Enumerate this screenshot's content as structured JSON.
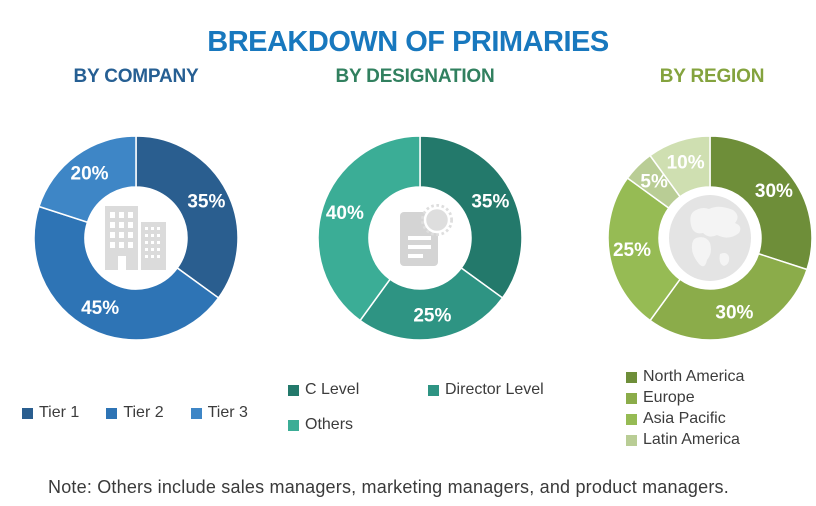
{
  "title": "BREAKDOWN OF PRIMARIES",
  "title_color": "#1878BE",
  "note": "Note: Others include sales managers, marketing managers, and product managers.",
  "chart_data": [
    {
      "type": "pie",
      "variant": "donut",
      "title": "BY COMPANY",
      "title_color": "#265F93",
      "center_icon": "building-icon",
      "legend_layout": "row",
      "segments": [
        {
          "label": "Tier 1",
          "value": 35,
          "display": "35%",
          "color": "#2A5E8F"
        },
        {
          "label": "Tier 2",
          "value": 45,
          "display": "45%",
          "color": "#2E74B5"
        },
        {
          "label": "Tier 3",
          "value": 20,
          "display": "20%",
          "color": "#3E86C6"
        }
      ],
      "legend": [
        {
          "label": "Tier 1",
          "color": "#2A5E8F"
        },
        {
          "label": "Tier 2",
          "color": "#2E74B5"
        },
        {
          "label": "Tier 3",
          "color": "#3E86C6"
        }
      ]
    },
    {
      "type": "pie",
      "variant": "donut",
      "title": "BY DESIGNATION",
      "title_color": "#31805F",
      "center_icon": "document-icon",
      "legend_layout": "grid",
      "segments": [
        {
          "label": "C Level",
          "value": 35,
          "display": "35%",
          "color": "#23796B"
        },
        {
          "label": "Director Level",
          "value": 25,
          "display": "25%",
          "color": "#2E9483"
        },
        {
          "label": "Others",
          "value": 40,
          "display": "40%",
          "color": "#3BAD96"
        }
      ],
      "legend": [
        {
          "label": "C Level",
          "color": "#23796B"
        },
        {
          "label": "Director Level",
          "color": "#2E9483"
        },
        {
          "label": "Others",
          "color": "#3BAD96"
        }
      ]
    },
    {
      "type": "pie",
      "variant": "donut",
      "title": "BY REGION",
      "title_color": "#84A33E",
      "center_icon": "globe-icon",
      "legend_layout": "column",
      "segments": [
        {
          "label": "North America",
          "value": 30,
          "display": "30%",
          "color": "#6E8E39"
        },
        {
          "label": "Europe",
          "value": 30,
          "display": "30%",
          "color": "#8BAC4A"
        },
        {
          "label": "Asia Pacific",
          "value": 25,
          "display": "25%",
          "color": "#96BB54"
        },
        {
          "label": "Latin America",
          "value": 5,
          "display": "5%",
          "color": "#B9CD95"
        },
        {
          "label": "",
          "value": 10,
          "display": "10%",
          "color": "#CFDFB1"
        }
      ],
      "legend": [
        {
          "label": "North America",
          "color": "#6E8E39"
        },
        {
          "label": "Europe",
          "color": "#8BAC4A"
        },
        {
          "label": "Asia Pacific",
          "color": "#96BB54"
        },
        {
          "label": "Latin America",
          "color": "#B9CD95"
        }
      ]
    }
  ]
}
